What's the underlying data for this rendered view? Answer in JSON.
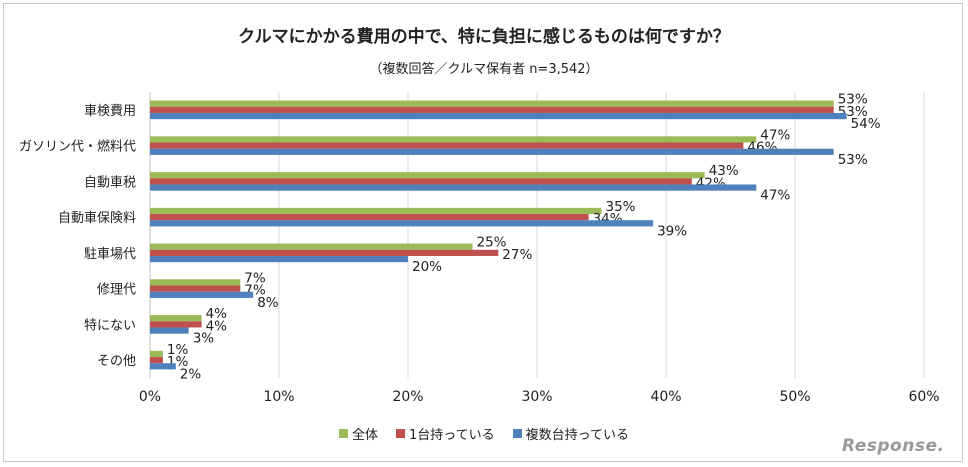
{
  "chart_data": {
    "type": "bar",
    "orientation": "horizontal",
    "title": "クルマにかかる費用の中で、特に負担に感じるものは何ですか？",
    "subtitle": "（複数回答／クルマ保有者 n=3,542）",
    "categories": [
      "車検費用",
      "ガソリン代・燃料代",
      "自動車税",
      "自動車保険料",
      "駐車場代",
      "修理代",
      "特にない",
      "その他"
    ],
    "series": [
      {
        "name": "全体",
        "color": "#9bbb59",
        "values": [
          53,
          47,
          43,
          35,
          25,
          7,
          4,
          1
        ]
      },
      {
        "name": "1台持っている",
        "color": "#c0504d",
        "values": [
          53,
          46,
          42,
          34,
          27,
          7,
          4,
          1
        ]
      },
      {
        "name": "複数台持っている",
        "color": "#4f81bd",
        "values": [
          54,
          53,
          47,
          39,
          20,
          8,
          3,
          2
        ]
      }
    ],
    "xlim": [
      0,
      60
    ],
    "xticks": [
      "0%",
      "10%",
      "20%",
      "30%",
      "40%",
      "50%",
      "60%"
    ],
    "grid": true,
    "legend": "bottom"
  },
  "watermark": "Response."
}
